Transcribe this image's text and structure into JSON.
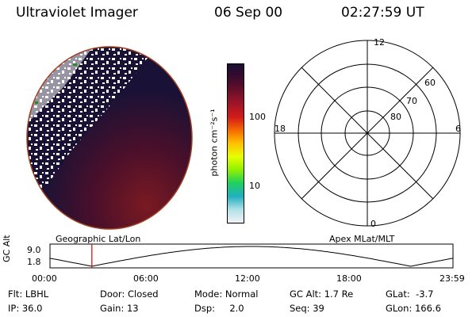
{
  "header": {
    "instrument": "Ultraviolet Imager",
    "date": "06 Sep 00",
    "time": "02:27:59 UT"
  },
  "colorbar": {
    "label": "photon cm⁻²s⁻¹",
    "ticks": [
      "100",
      "10"
    ],
    "colors": [
      "#1a0f33",
      "#3a0a2e",
      "#6a0f2a",
      "#a01528",
      "#d21a1a",
      "#f56a00",
      "#ffc000",
      "#e8ff00",
      "#90f000",
      "#20d060",
      "#20b0c0",
      "#b0e0e8",
      "#f2f2f2"
    ]
  },
  "polar_plot": {
    "labels": {
      "top": "12",
      "left": "18",
      "right": "6",
      "bottom": "0"
    },
    "latitudes": [
      "60",
      "70",
      "80"
    ]
  },
  "timeline": {
    "left_caption": "Geographic Lat/Lon",
    "right_caption": "Apex MLat/MLT",
    "axis_title": "GC Alt",
    "y_ticks": [
      "9.0",
      "1.8"
    ],
    "x_ticks": [
      "00:00",
      "06:00",
      "12:00",
      "18:00",
      "23:59"
    ],
    "current_time_fraction": 0.104
  },
  "info": {
    "row1": [
      {
        "label": "Flt:",
        "value": "LBHL"
      },
      {
        "label": "Door:",
        "value": "Closed"
      },
      {
        "label": "Mode:",
        "value": "Normal"
      },
      {
        "label": "GC Alt:",
        "value": "1.7 Re"
      },
      {
        "label": "GLat:",
        "value": "-3.7"
      }
    ],
    "row2": [
      {
        "label": "IP:",
        "value": "36.0"
      },
      {
        "label": "Gain:",
        "value": "13"
      },
      {
        "label": "Dsp:",
        "value": "2.0"
      },
      {
        "label": "Seq:",
        "value": "39"
      },
      {
        "label": "GLon:",
        "value": "166.6"
      }
    ]
  }
}
